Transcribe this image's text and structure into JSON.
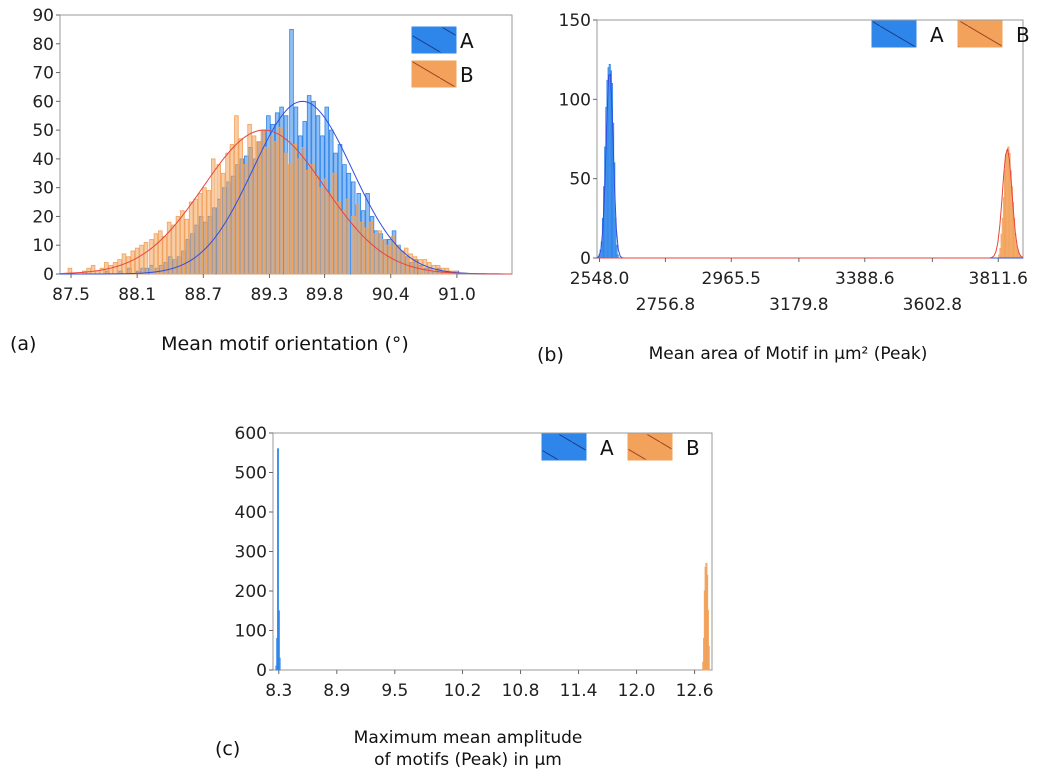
{
  "colors": {
    "A": "#2f86ea",
    "B": "#f2a25a",
    "A_curve": "#2e4ee0",
    "B_curve": "#e8453c"
  },
  "chart_data": [
    {
      "type": "bar",
      "panel_label": "(a)",
      "xlabel": "Mean motif orientation (°)",
      "xlim": [
        87.4,
        91.5
      ],
      "ylim": [
        0,
        90
      ],
      "xticks": [
        "87.5",
        "88.1",
        "88.7",
        "89.3",
        "89.8",
        "90.4",
        "91.0"
      ],
      "xtick_values": [
        87.5,
        88.1,
        88.7,
        89.3,
        89.8,
        90.4,
        91.0
      ],
      "yticks": [
        "0",
        "10",
        "20",
        "30",
        "40",
        "50",
        "60",
        "70",
        "80",
        "90"
      ],
      "ytick_values": [
        0,
        10,
        20,
        30,
        40,
        50,
        60,
        70,
        80,
        90
      ],
      "legend": [
        "A",
        "B"
      ],
      "legend_position": "top-right",
      "grid": false,
      "bin_width": 0.041,
      "series": [
        {
          "name": "A",
          "x": [
            87.62,
            87.67,
            87.71,
            87.75,
            87.79,
            87.83,
            87.87,
            87.91,
            87.95,
            87.99,
            88.03,
            88.07,
            88.11,
            88.15,
            88.19,
            88.23,
            88.28,
            88.32,
            88.36,
            88.4,
            88.44,
            88.48,
            88.52,
            88.56,
            88.6,
            88.64,
            88.68,
            88.72,
            88.76,
            88.8,
            88.84,
            88.89,
            88.93,
            88.97,
            89.01,
            89.05,
            89.09,
            89.13,
            89.17,
            89.21,
            89.25,
            89.29,
            89.33,
            89.37,
            89.41,
            89.45,
            89.5,
            89.54,
            89.58,
            89.62,
            89.66,
            89.7,
            89.74,
            89.78,
            89.82,
            89.86,
            89.9,
            89.94,
            89.98,
            90.02,
            90.06,
            90.11,
            90.15,
            90.19,
            90.23,
            90.27,
            90.31,
            90.35,
            90.39,
            90.43,
            90.47,
            90.51,
            90.55,
            90.59,
            90.63,
            90.67,
            90.72,
            90.76,
            90.8,
            90.84,
            90.88,
            90.92,
            90.96,
            91.0
          ],
          "values": [
            0,
            0,
            0,
            0,
            0,
            1,
            0,
            0,
            1,
            0,
            2,
            0,
            1,
            2,
            2,
            3,
            2,
            3,
            4,
            6,
            5,
            6,
            8,
            12,
            14,
            17,
            20,
            18,
            20,
            23,
            26,
            30,
            32,
            34,
            38,
            40,
            41,
            44,
            40,
            46,
            50,
            55,
            52,
            56,
            58,
            55,
            85,
            58,
            48,
            53,
            62,
            60,
            55,
            48,
            58,
            50,
            42,
            45,
            38,
            35,
            32,
            28,
            22,
            28,
            20,
            15,
            14,
            12,
            12,
            15,
            10,
            8,
            6,
            4,
            5,
            3,
            2,
            2,
            1,
            2,
            1,
            1,
            0,
            1
          ]
        },
        {
          "name": "B",
          "x": [
            87.45,
            87.49,
            87.53,
            87.57,
            87.62,
            87.66,
            87.7,
            87.74,
            87.78,
            87.82,
            87.86,
            87.9,
            87.94,
            87.98,
            88.02,
            88.06,
            88.1,
            88.14,
            88.18,
            88.23,
            88.27,
            88.31,
            88.35,
            88.39,
            88.43,
            88.47,
            88.51,
            88.55,
            88.59,
            88.63,
            88.67,
            88.71,
            88.75,
            88.79,
            88.84,
            88.88,
            88.92,
            88.96,
            89.0,
            89.04,
            89.08,
            89.12,
            89.16,
            89.2,
            89.24,
            89.28,
            89.32,
            89.36,
            89.4,
            89.45,
            89.49,
            89.53,
            89.57,
            89.61,
            89.65,
            89.69,
            89.73,
            89.77,
            89.81,
            89.85,
            89.89,
            89.93,
            89.97,
            90.01,
            90.06,
            90.1,
            90.14,
            90.18,
            90.22,
            90.26,
            90.3,
            90.34,
            90.38,
            90.42,
            90.46,
            90.5,
            90.54,
            90.58,
            90.62,
            90.67,
            90.71,
            90.75,
            90.79,
            90.83,
            90.87,
            90.91,
            90.95,
            90.99
          ],
          "values": [
            0,
            2,
            0,
            0,
            1,
            2,
            3,
            1,
            2,
            4,
            3,
            4,
            5,
            7,
            6,
            8,
            9,
            10,
            11,
            12,
            14,
            15,
            13,
            18,
            17,
            20,
            22,
            19,
            25,
            26,
            28,
            30,
            29,
            40,
            38,
            35,
            42,
            45,
            55,
            47,
            38,
            52,
            48,
            46,
            50,
            44,
            48,
            46,
            51,
            42,
            38,
            45,
            40,
            44,
            36,
            38,
            34,
            30,
            33,
            28,
            35,
            25,
            22,
            26,
            20,
            24,
            18,
            16,
            18,
            14,
            15,
            12,
            10,
            13,
            10,
            8,
            9,
            7,
            6,
            5,
            5,
            4,
            3,
            3,
            2,
            2,
            1,
            1
          ]
        }
      ],
      "fits": [
        {
          "name": "A",
          "mean": 89.6,
          "sd": 0.45,
          "peak": 60
        },
        {
          "name": "B",
          "mean": 89.25,
          "sd": 0.55,
          "peak": 50
        }
      ]
    },
    {
      "type": "bar",
      "panel_label": "(b)",
      "xlabel": "Mean area of Motif in µm² (Peak)",
      "xlim": [
        2540,
        3890
      ],
      "ylim": [
        0,
        150
      ],
      "xticks": [
        "2548.0",
        "2756.8",
        "2965.5",
        "3179.8",
        "3388.6",
        "3602.8",
        "3811.6"
      ],
      "xtick_values": [
        2548.0,
        2756.8,
        2965.5,
        3179.8,
        3388.6,
        3602.8,
        3811.6
      ],
      "yticks": [
        "0",
        "50",
        "100",
        "150"
      ],
      "ytick_values": [
        0,
        50,
        100,
        150
      ],
      "legend": [
        "A",
        "B"
      ],
      "legend_position": "top-right",
      "grid": false,
      "bin_width": 3.6,
      "series": [
        {
          "name": "A",
          "x": [
            2548,
            2551.6,
            2555.2,
            2558.8,
            2562.4,
            2566,
            2569.6,
            2573.2,
            2576.8,
            2580.4,
            2584,
            2587.6,
            2591.2,
            2594.8,
            2598.4,
            2602,
            2605.6
          ],
          "values": [
            2,
            5,
            10,
            25,
            45,
            70,
            95,
            112,
            120,
            122,
            118,
            110,
            85,
            60,
            25,
            8,
            2
          ]
        },
        {
          "name": "B",
          "x": [
            3815,
            3818.6,
            3822.2,
            3825.8,
            3829.4,
            3833,
            3836.6,
            3840.2,
            3843.8,
            3847.4,
            3851,
            3854.6,
            3858.2,
            3861.8,
            3865.4,
            3869,
            3872.6,
            3876.2,
            3879.8
          ],
          "values": [
            2,
            6,
            15,
            25,
            38,
            55,
            65,
            68,
            70,
            66,
            55,
            45,
            35,
            25,
            15,
            8,
            5,
            3,
            1
          ]
        }
      ],
      "fits": [
        {
          "name": "A",
          "mean": 2580,
          "sd": 11,
          "peak": 120
        },
        {
          "name": "B",
          "mean": 3840,
          "sd": 15,
          "peak": 69
        }
      ]
    },
    {
      "type": "bar",
      "panel_label": "(c)",
      "xlabel": "Maximum mean amplitude of motifs (Peak) in µm",
      "xlabel_lines": [
        "Maximum mean amplitude",
        "of motifs (Peak) in µm"
      ],
      "xlim": [
        8.24,
        12.78
      ],
      "ylim": [
        0,
        600
      ],
      "xticks": [
        "8.3",
        "8.9",
        "9.5",
        "10.2",
        "10.8",
        "11.4",
        "12.0",
        "12.6"
      ],
      "xtick_values": [
        8.3,
        8.9,
        9.5,
        10.2,
        10.8,
        11.4,
        12.0,
        12.6
      ],
      "yticks": [
        "0",
        "100",
        "200",
        "300",
        "400",
        "500",
        "600"
      ],
      "ytick_values": [
        0,
        100,
        200,
        300,
        400,
        500,
        600
      ],
      "legend": [
        "A",
        "B"
      ],
      "legend_position": "top-right",
      "grid": false,
      "bin_width": 0.008,
      "series": [
        {
          "name": "A",
          "x": [
            8.276,
            8.284,
            8.292,
            8.3,
            8.308
          ],
          "values": [
            10,
            80,
            560,
            150,
            30
          ]
        },
        {
          "name": "B",
          "x": [
            12.69,
            12.698,
            12.706,
            12.714,
            12.722,
            12.73,
            12.738,
            12.746
          ],
          "values": [
            20,
            80,
            200,
            260,
            270,
            240,
            150,
            60
          ]
        }
      ],
      "fits": []
    }
  ]
}
